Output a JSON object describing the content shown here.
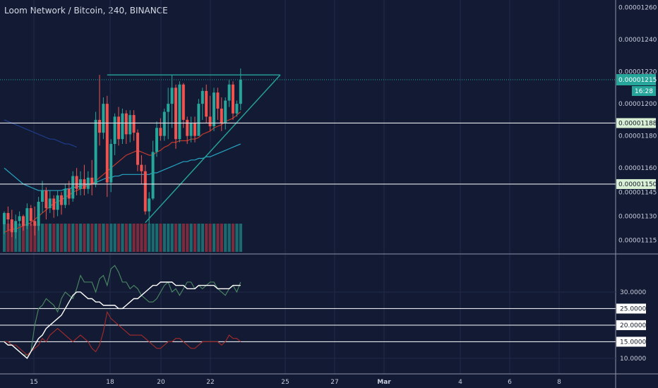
{
  "header": {
    "title": "Loom Network / Bitcoin, 240, BINANCE"
  },
  "colors": {
    "background": "#131b34",
    "grid": "#1f2a4a",
    "up": "#26a69a",
    "down": "#ef5350",
    "volume_up": "#1b6a70",
    "volume_down": "#7a2b3d",
    "ma_blue": "#1e3c8a",
    "ma_cyan": "#26a6c3",
    "ma_red": "#c0392b",
    "price_tag": "#26a69a",
    "level_tag": "#d9f0d5"
  },
  "chart_data": [
    {
      "type": "candlestick",
      "title": "Loom Network / Bitcoin, 240, BINANCE",
      "x_ticks": [
        "15",
        "18",
        "20",
        "22",
        "25",
        "27",
        "Mar",
        "4",
        "6",
        "8"
      ],
      "y_ticks": [
        "0.00001260",
        "0.00001240",
        "0.00001220",
        "0.00001200",
        "0.00001180",
        "0.00001160",
        "0.00001145",
        "0.00001130",
        "0.00001115"
      ],
      "ylim": [
        1.11e-05,
        1.26e-05
      ],
      "last_price": "0.00001215",
      "countdown": "16:28",
      "levels": [
        "0.00001188",
        "0.00001150"
      ],
      "trendline_top": "0.00001218",
      "candles": [
        [
          1.1125,
          1.1133,
          1.1119,
          1.1132
        ],
        [
          1.1132,
          1.1136,
          1.1121,
          1.1128
        ],
        [
          1.1128,
          1.1134,
          1.1117,
          1.112
        ],
        [
          1.112,
          1.1131,
          1.1116,
          1.1127
        ],
        [
          1.1127,
          1.1133,
          1.1124,
          1.113
        ],
        [
          1.113,
          1.1131,
          1.1121,
          1.1124
        ],
        [
          1.1124,
          1.1138,
          1.1122,
          1.1135
        ],
        [
          1.1135,
          1.1137,
          1.1124,
          1.1127
        ],
        [
          1.1127,
          1.1136,
          1.1118,
          1.1124
        ],
        [
          1.1124,
          1.1142,
          1.1121,
          1.1139
        ],
        [
          1.1139,
          1.1152,
          1.1132,
          1.1146
        ],
        [
          1.1146,
          1.1148,
          1.1128,
          1.1135
        ],
        [
          1.1135,
          1.1146,
          1.1132,
          1.1141
        ],
        [
          1.1141,
          1.1143,
          1.1129,
          1.1134
        ],
        [
          1.1134,
          1.1146,
          1.113,
          1.1143
        ],
        [
          1.1143,
          1.1145,
          1.1131,
          1.1137
        ],
        [
          1.1137,
          1.115,
          1.1135,
          1.1147
        ],
        [
          1.1147,
          1.1152,
          1.1137,
          1.1141
        ],
        [
          1.1141,
          1.1158,
          1.1139,
          1.1155
        ],
        [
          1.1155,
          1.116,
          1.1143,
          1.1147
        ],
        [
          1.1147,
          1.1158,
          1.1143,
          1.1153
        ],
        [
          1.1153,
          1.1162,
          1.1143,
          1.1147
        ],
        [
          1.1147,
          1.1158,
          1.1144,
          1.1154
        ],
        [
          1.1154,
          1.1165,
          1.1143,
          1.115
        ],
        [
          1.115,
          1.1195,
          1.1148,
          1.119
        ],
        [
          1.119,
          1.1218,
          1.1174,
          1.1182
        ],
        [
          1.1182,
          1.1204,
          1.1178,
          1.12
        ],
        [
          1.12,
          1.1205,
          1.1142,
          1.1151
        ],
        [
          1.1151,
          1.1178,
          1.1145,
          1.1175
        ],
        [
          1.1175,
          1.1194,
          1.1168,
          1.1192
        ],
        [
          1.1192,
          1.1198,
          1.1174,
          1.1178
        ],
        [
          1.1178,
          1.1197,
          1.1175,
          1.1194
        ],
        [
          1.1194,
          1.1196,
          1.1175,
          1.1181
        ],
        [
          1.1181,
          1.1196,
          1.1176,
          1.1193
        ],
        [
          1.1193,
          1.1196,
          1.1177,
          1.1182
        ],
        [
          1.1182,
          1.1184,
          1.1158,
          1.1162
        ],
        [
          1.1162,
          1.1168,
          1.115,
          1.1158
        ],
        [
          1.1158,
          1.1162,
          1.1131,
          1.1133
        ],
        [
          1.1133,
          1.1145,
          1.1125,
          1.1141
        ],
        [
          1.1141,
          1.1177,
          1.114,
          1.117
        ],
        [
          1.117,
          1.1189,
          1.1167,
          1.1185
        ],
        [
          1.1185,
          1.1191,
          1.1177,
          1.118
        ],
        [
          1.118,
          1.1197,
          1.1177,
          1.1195
        ],
        [
          1.1195,
          1.121,
          1.1178,
          1.12
        ],
        [
          1.12,
          1.1218,
          1.1185,
          1.121
        ],
        [
          1.121,
          1.1212,
          1.1172,
          1.1178
        ],
        [
          1.1178,
          1.1214,
          1.1176,
          1.1212
        ],
        [
          1.1212,
          1.1213,
          1.1185,
          1.119
        ],
        [
          1.119,
          1.1192,
          1.1175,
          1.118
        ],
        [
          1.118,
          1.1192,
          1.1176,
          1.1188
        ],
        [
          1.1188,
          1.1192,
          1.1176,
          1.118
        ],
        [
          1.118,
          1.1203,
          1.118,
          1.12
        ],
        [
          1.12,
          1.121,
          1.119,
          1.1208
        ],
        [
          1.1208,
          1.1212,
          1.1188,
          1.1192
        ],
        [
          1.1192,
          1.1205,
          1.1183,
          1.1186
        ],
        [
          1.1186,
          1.121,
          1.1183,
          1.1207
        ],
        [
          1.1207,
          1.121,
          1.119,
          1.1197
        ],
        [
          1.1197,
          1.1204,
          1.1183,
          1.1188
        ],
        [
          1.1188,
          1.1204,
          1.1184,
          1.1202
        ],
        [
          1.1202,
          1.1215,
          1.1198,
          1.1212
        ],
        [
          1.1212,
          1.1214,
          1.119,
          1.1194
        ],
        [
          1.1194,
          1.1202,
          1.1192,
          1.12
        ],
        [
          1.12,
          1.1222,
          1.1196,
          1.1215
        ]
      ],
      "sma_fast": [
        1.112,
        1.1121,
        1.1122,
        1.1122,
        1.1123,
        1.1124,
        1.1125,
        1.1126,
        1.1128,
        1.113,
        1.1132,
        1.1134,
        1.1136,
        1.1138,
        1.1139,
        1.114,
        1.1142,
        1.1143,
        1.1145,
        1.1146,
        1.1147,
        1.1148,
        1.1149,
        1.115,
        1.1152,
        1.1154,
        1.1156,
        1.1158,
        1.116,
        1.1162,
        1.1164,
        1.1166,
        1.1168,
        1.1169,
        1.117,
        1.1171,
        1.117,
        1.1169,
        1.1168,
        1.1168,
        1.117,
        1.1171,
        1.1173,
        1.1174,
        1.1176,
        1.1176,
        1.1177,
        1.1177,
        1.1177,
        1.1178,
        1.1178,
        1.1179,
        1.1181,
        1.1182,
        1.1183,
        1.1185,
        1.1186,
        1.1187,
        1.1189,
        1.119,
        1.1191,
        1.1193,
        1.1195
      ],
      "sma_slow": [
        1.116,
        1.1158,
        1.1156,
        1.1154,
        1.1152,
        1.115,
        1.1149,
        1.1148,
        1.1147,
        1.1146,
        1.1146,
        1.1146,
        1.1146,
        1.1146,
        1.1146,
        1.1146,
        1.1147,
        1.1147,
        1.1148,
        1.1148,
        1.1149,
        1.1149,
        1.115,
        1.115,
        1.1151,
        1.1152,
        1.1153,
        1.1154,
        1.1154,
        1.1155,
        1.1155,
        1.1156,
        1.1156,
        1.1156,
        1.1156,
        1.1156,
        1.1156,
        1.1156,
        1.1156,
        1.1157,
        1.1157,
        1.1158,
        1.1159,
        1.116,
        1.1161,
        1.1162,
        1.1163,
        1.1164,
        1.1164,
        1.1165,
        1.1165,
        1.1166,
        1.1166,
        1.1167,
        1.1167,
        1.1168,
        1.1169,
        1.117,
        1.1171,
        1.1172,
        1.1173,
        1.1174,
        1.1175
      ],
      "sma_long": [
        1.119,
        1.1189,
        1.1188,
        1.1187,
        1.1186,
        1.1185,
        1.1184,
        1.1183,
        1.1182,
        1.1181,
        1.118,
        1.1179,
        1.1178,
        1.1178,
        1.1177,
        1.1176,
        1.1175,
        1.1175,
        1.1174,
        1.1173
      ]
    },
    {
      "type": "line",
      "y_ticks": [
        "30.0000",
        "25.0000",
        "20.0000",
        "15.0000",
        "10.0000"
      ],
      "levels": [
        "25.0000",
        "20.0000",
        "15.0000"
      ],
      "ylim": [
        7,
        40
      ],
      "series": [
        {
          "values": [
            15,
            15,
            14,
            13,
            12,
            11,
            11,
            12,
            20,
            25,
            26,
            28,
            27,
            26,
            24,
            28,
            30,
            29,
            28,
            31,
            35,
            33,
            33,
            33,
            30,
            34,
            35,
            32,
            37,
            38,
            36,
            33,
            33,
            31,
            32,
            31,
            29,
            28,
            27,
            27,
            28,
            30,
            32,
            33,
            30,
            31,
            29,
            31,
            33,
            33,
            31,
            32,
            31,
            32,
            33,
            33,
            31,
            30,
            29,
            31,
            32,
            30,
            33
          ]
        },
        {
          "values": [
            15,
            15,
            14,
            14,
            13,
            12,
            11,
            12,
            13,
            14,
            16,
            15,
            17,
            18,
            19,
            18,
            17,
            16,
            15,
            16,
            17,
            16,
            15,
            13,
            12,
            14,
            18,
            24,
            22,
            21,
            20,
            19,
            18,
            17,
            17,
            17,
            17,
            16,
            15,
            14,
            13,
            13,
            14,
            15,
            15,
            16,
            16,
            15,
            14,
            13,
            13,
            14,
            15,
            15,
            15,
            15,
            15,
            14,
            15,
            17,
            16,
            16,
            15
          ]
        },
        {
          "values": [
            15,
            14,
            14,
            13,
            12,
            11,
            10,
            12,
            14,
            16,
            17,
            19,
            20,
            21,
            22,
            23,
            25,
            27,
            29,
            30,
            30,
            29,
            28,
            28,
            27,
            27,
            26,
            26,
            26,
            26,
            25,
            25,
            26,
            27,
            28,
            28,
            29,
            30,
            31,
            32,
            32,
            33,
            33,
            33,
            33,
            32,
            32,
            32,
            31,
            31,
            31,
            32,
            32,
            32,
            32,
            32,
            31,
            31,
            31,
            31,
            32,
            32,
            32
          ]
        }
      ]
    }
  ]
}
